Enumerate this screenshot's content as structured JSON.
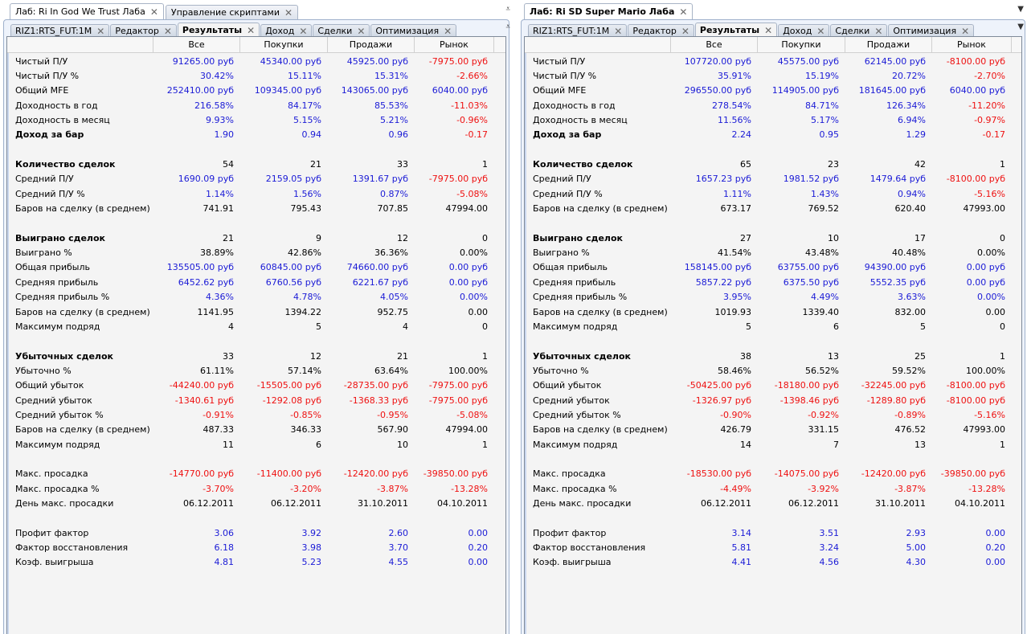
{
  "colors": {
    "positive": "#1b1bd6",
    "negative": "#ee1111",
    "neutral": "#000000"
  },
  "columns": [
    "Все",
    "Покупки",
    "Продажи",
    "Рынок"
  ],
  "left": {
    "outer_tabs": [
      {
        "label": "Лаб: Ri In God We Trust Лаба",
        "active": true
      },
      {
        "label": "Управление скриптами",
        "active": false
      }
    ],
    "inner_tabs": [
      {
        "label": "RIZ1:RTS_FUT:1M"
      },
      {
        "label": "Редактор"
      },
      {
        "label": "Результаты",
        "active": true
      },
      {
        "label": "Доход"
      },
      {
        "label": "Сделки"
      },
      {
        "label": "Оптимизация"
      }
    ],
    "rows": [
      {
        "label": "Чистый П/У",
        "vals": [
          "91265.00 руб",
          "45340.00 руб",
          "45925.00 руб",
          "-7975.00 руб"
        ],
        "col": [
          "blue",
          "blue",
          "blue",
          "red"
        ]
      },
      {
        "label": "Чистый П/У %",
        "vals": [
          "30.42%",
          "15.11%",
          "15.31%",
          "-2.66%"
        ],
        "col": [
          "blue",
          "blue",
          "blue",
          "red"
        ]
      },
      {
        "label": "Общий MFE",
        "vals": [
          "252410.00 руб",
          "109345.00 руб",
          "143065.00 руб",
          "6040.00 руб"
        ],
        "col": [
          "blue",
          "blue",
          "blue",
          "blue"
        ]
      },
      {
        "label": "Доходность в год",
        "vals": [
          "216.58%",
          "84.17%",
          "85.53%",
          "-11.03%"
        ],
        "col": [
          "blue",
          "blue",
          "blue",
          "red"
        ]
      },
      {
        "label": "Доходность в месяц",
        "vals": [
          "9.93%",
          "5.15%",
          "5.21%",
          "-0.96%"
        ],
        "col": [
          "blue",
          "blue",
          "blue",
          "red"
        ]
      },
      {
        "label": "Доход за бар",
        "vals": [
          "1.90",
          "0.94",
          "0.96",
          "-0.17"
        ],
        "col": [
          "blue",
          "blue",
          "blue",
          "red"
        ],
        "bold": true
      },
      {
        "gap": true
      },
      {
        "label": "Количество сделок",
        "vals": [
          "54",
          "21",
          "33",
          "1"
        ],
        "col": [
          "black",
          "black",
          "black",
          "black"
        ],
        "bold": true
      },
      {
        "label": "Средний П/У",
        "vals": [
          "1690.09 руб",
          "2159.05 руб",
          "1391.67 руб",
          "-7975.00 руб"
        ],
        "col": [
          "blue",
          "blue",
          "blue",
          "red"
        ]
      },
      {
        "label": "Средний П/У %",
        "vals": [
          "1.14%",
          "1.56%",
          "0.87%",
          "-5.08%"
        ],
        "col": [
          "blue",
          "blue",
          "blue",
          "red"
        ]
      },
      {
        "label": "Баров на сделку (в среднем)",
        "vals": [
          "741.91",
          "795.43",
          "707.85",
          "47994.00"
        ],
        "col": [
          "black",
          "black",
          "black",
          "black"
        ]
      },
      {
        "gap": true
      },
      {
        "label": "Выиграно сделок",
        "vals": [
          "21",
          "9",
          "12",
          "0"
        ],
        "col": [
          "black",
          "black",
          "black",
          "black"
        ],
        "bold": true
      },
      {
        "label": "Выиграно %",
        "vals": [
          "38.89%",
          "42.86%",
          "36.36%",
          "0.00%"
        ],
        "col": [
          "black",
          "black",
          "black",
          "black"
        ]
      },
      {
        "label": "Общая прибыль",
        "vals": [
          "135505.00 руб",
          "60845.00 руб",
          "74660.00 руб",
          "0.00 руб"
        ],
        "col": [
          "blue",
          "blue",
          "blue",
          "blue"
        ]
      },
      {
        "label": "Средняя прибыль",
        "vals": [
          "6452.62 руб",
          "6760.56 руб",
          "6221.67 руб",
          "0.00 руб"
        ],
        "col": [
          "blue",
          "blue",
          "blue",
          "blue"
        ]
      },
      {
        "label": "Средняя прибыль %",
        "vals": [
          "4.36%",
          "4.78%",
          "4.05%",
          "0.00%"
        ],
        "col": [
          "blue",
          "blue",
          "blue",
          "blue"
        ]
      },
      {
        "label": "Баров на сделку (в среднем)",
        "vals": [
          "1141.95",
          "1394.22",
          "952.75",
          "0.00"
        ],
        "col": [
          "black",
          "black",
          "black",
          "black"
        ]
      },
      {
        "label": "Максимум подряд",
        "vals": [
          "4",
          "5",
          "4",
          "0"
        ],
        "col": [
          "black",
          "black",
          "black",
          "black"
        ]
      },
      {
        "gap": true
      },
      {
        "label": "Убыточных сделок",
        "vals": [
          "33",
          "12",
          "21",
          "1"
        ],
        "col": [
          "black",
          "black",
          "black",
          "black"
        ],
        "bold": true
      },
      {
        "label": "Убыточно %",
        "vals": [
          "61.11%",
          "57.14%",
          "63.64%",
          "100.00%"
        ],
        "col": [
          "black",
          "black",
          "black",
          "black"
        ]
      },
      {
        "label": "Общий убыток",
        "vals": [
          "-44240.00 руб",
          "-15505.00 руб",
          "-28735.00 руб",
          "-7975.00 руб"
        ],
        "col": [
          "red",
          "red",
          "red",
          "red"
        ]
      },
      {
        "label": "Средний убыток",
        "vals": [
          "-1340.61 руб",
          "-1292.08 руб",
          "-1368.33 руб",
          "-7975.00 руб"
        ],
        "col": [
          "red",
          "red",
          "red",
          "red"
        ]
      },
      {
        "label": "Средний убыток %",
        "vals": [
          "-0.91%",
          "-0.85%",
          "-0.95%",
          "-5.08%"
        ],
        "col": [
          "red",
          "red",
          "red",
          "red"
        ]
      },
      {
        "label": "Баров на сделку (в среднем)",
        "vals": [
          "487.33",
          "346.33",
          "567.90",
          "47994.00"
        ],
        "col": [
          "black",
          "black",
          "black",
          "black"
        ]
      },
      {
        "label": "Максимум подряд",
        "vals": [
          "11",
          "6",
          "10",
          "1"
        ],
        "col": [
          "black",
          "black",
          "black",
          "black"
        ]
      },
      {
        "gap": true
      },
      {
        "label": "Макс. просадка",
        "vals": [
          "-14770.00 руб",
          "-11400.00 руб",
          "-12420.00 руб",
          "-39850.00 руб"
        ],
        "col": [
          "red",
          "red",
          "red",
          "red"
        ]
      },
      {
        "label": "Макс. просадка %",
        "vals": [
          "-3.70%",
          "-3.20%",
          "-3.87%",
          "-13.28%"
        ],
        "col": [
          "red",
          "red",
          "red",
          "red"
        ]
      },
      {
        "label": "День макс. просадки",
        "vals": [
          "06.12.2011",
          "06.12.2011",
          "31.10.2011",
          "04.10.2011"
        ],
        "col": [
          "black",
          "black",
          "black",
          "black"
        ]
      },
      {
        "gap": true
      },
      {
        "label": "Профит фактор",
        "vals": [
          "3.06",
          "3.92",
          "2.60",
          "0.00"
        ],
        "col": [
          "blue",
          "blue",
          "blue",
          "blue"
        ]
      },
      {
        "label": "Фактор восстановления",
        "vals": [
          "6.18",
          "3.98",
          "3.70",
          "0.20"
        ],
        "col": [
          "blue",
          "blue",
          "blue",
          "blue"
        ]
      },
      {
        "label": "Коэф. выигрыша",
        "vals": [
          "4.81",
          "5.23",
          "4.55",
          "0.00"
        ],
        "col": [
          "blue",
          "blue",
          "blue",
          "blue"
        ]
      }
    ]
  },
  "right": {
    "outer_tabs": [
      {
        "label": "Лаб: Ri SD Super Mario Лаба",
        "active": true
      }
    ],
    "inner_tabs": [
      {
        "label": "RIZ1:RTS_FUT:1M"
      },
      {
        "label": "Редактор"
      },
      {
        "label": "Результаты",
        "active": true
      },
      {
        "label": "Доход"
      },
      {
        "label": "Сделки"
      },
      {
        "label": "Оптимизация"
      }
    ],
    "rows": [
      {
        "label": "Чистый П/У",
        "vals": [
          "107720.00 руб",
          "45575.00 руб",
          "62145.00 руб",
          "-8100.00 руб"
        ],
        "col": [
          "blue",
          "blue",
          "blue",
          "red"
        ]
      },
      {
        "label": "Чистый П/У %",
        "vals": [
          "35.91%",
          "15.19%",
          "20.72%",
          "-2.70%"
        ],
        "col": [
          "blue",
          "blue",
          "blue",
          "red"
        ]
      },
      {
        "label": "Общий MFE",
        "vals": [
          "296550.00 руб",
          "114905.00 руб",
          "181645.00 руб",
          "6040.00 руб"
        ],
        "col": [
          "blue",
          "blue",
          "blue",
          "blue"
        ]
      },
      {
        "label": "Доходность в год",
        "vals": [
          "278.54%",
          "84.71%",
          "126.34%",
          "-11.20%"
        ],
        "col": [
          "blue",
          "blue",
          "blue",
          "red"
        ]
      },
      {
        "label": "Доходность в месяц",
        "vals": [
          "11.56%",
          "5.17%",
          "6.94%",
          "-0.97%"
        ],
        "col": [
          "blue",
          "blue",
          "blue",
          "red"
        ]
      },
      {
        "label": "Доход за бар",
        "vals": [
          "2.24",
          "0.95",
          "1.29",
          "-0.17"
        ],
        "col": [
          "blue",
          "blue",
          "blue",
          "red"
        ],
        "bold": true
      },
      {
        "gap": true
      },
      {
        "label": "Количество сделок",
        "vals": [
          "65",
          "23",
          "42",
          "1"
        ],
        "col": [
          "black",
          "black",
          "black",
          "black"
        ],
        "bold": true
      },
      {
        "label": "Средний П/У",
        "vals": [
          "1657.23 руб",
          "1981.52 руб",
          "1479.64 руб",
          "-8100.00 руб"
        ],
        "col": [
          "blue",
          "blue",
          "blue",
          "red"
        ]
      },
      {
        "label": "Средний П/У %",
        "vals": [
          "1.11%",
          "1.43%",
          "0.94%",
          "-5.16%"
        ],
        "col": [
          "blue",
          "blue",
          "blue",
          "red"
        ]
      },
      {
        "label": "Баров на сделку (в среднем)",
        "vals": [
          "673.17",
          "769.52",
          "620.40",
          "47993.00"
        ],
        "col": [
          "black",
          "black",
          "black",
          "black"
        ]
      },
      {
        "gap": true
      },
      {
        "label": "Выиграно сделок",
        "vals": [
          "27",
          "10",
          "17",
          "0"
        ],
        "col": [
          "black",
          "black",
          "black",
          "black"
        ],
        "bold": true
      },
      {
        "label": "Выиграно %",
        "vals": [
          "41.54%",
          "43.48%",
          "40.48%",
          "0.00%"
        ],
        "col": [
          "black",
          "black",
          "black",
          "black"
        ]
      },
      {
        "label": "Общая прибыль",
        "vals": [
          "158145.00 руб",
          "63755.00 руб",
          "94390.00 руб",
          "0.00 руб"
        ],
        "col": [
          "blue",
          "blue",
          "blue",
          "blue"
        ]
      },
      {
        "label": "Средняя прибыль",
        "vals": [
          "5857.22 руб",
          "6375.50 руб",
          "5552.35 руб",
          "0.00 руб"
        ],
        "col": [
          "blue",
          "blue",
          "blue",
          "blue"
        ]
      },
      {
        "label": "Средняя прибыль %",
        "vals": [
          "3.95%",
          "4.49%",
          "3.63%",
          "0.00%"
        ],
        "col": [
          "blue",
          "blue",
          "blue",
          "blue"
        ]
      },
      {
        "label": "Баров на сделку (в среднем)",
        "vals": [
          "1019.93",
          "1339.40",
          "832.00",
          "0.00"
        ],
        "col": [
          "black",
          "black",
          "black",
          "black"
        ]
      },
      {
        "label": "Максимум подряд",
        "vals": [
          "5",
          "6",
          "5",
          "0"
        ],
        "col": [
          "black",
          "black",
          "black",
          "black"
        ]
      },
      {
        "gap": true
      },
      {
        "label": "Убыточных сделок",
        "vals": [
          "38",
          "13",
          "25",
          "1"
        ],
        "col": [
          "black",
          "black",
          "black",
          "black"
        ],
        "bold": true
      },
      {
        "label": "Убыточно %",
        "vals": [
          "58.46%",
          "56.52%",
          "59.52%",
          "100.00%"
        ],
        "col": [
          "black",
          "black",
          "black",
          "black"
        ]
      },
      {
        "label": "Общий убыток",
        "vals": [
          "-50425.00 руб",
          "-18180.00 руб",
          "-32245.00 руб",
          "-8100.00 руб"
        ],
        "col": [
          "red",
          "red",
          "red",
          "red"
        ]
      },
      {
        "label": "Средний убыток",
        "vals": [
          "-1326.97 руб",
          "-1398.46 руб",
          "-1289.80 руб",
          "-8100.00 руб"
        ],
        "col": [
          "red",
          "red",
          "red",
          "red"
        ]
      },
      {
        "label": "Средний убыток %",
        "vals": [
          "-0.90%",
          "-0.92%",
          "-0.89%",
          "-5.16%"
        ],
        "col": [
          "red",
          "red",
          "red",
          "red"
        ]
      },
      {
        "label": "Баров на сделку (в среднем)",
        "vals": [
          "426.79",
          "331.15",
          "476.52",
          "47993.00"
        ],
        "col": [
          "black",
          "black",
          "black",
          "black"
        ]
      },
      {
        "label": "Максимум подряд",
        "vals": [
          "14",
          "7",
          "13",
          "1"
        ],
        "col": [
          "black",
          "black",
          "black",
          "black"
        ]
      },
      {
        "gap": true
      },
      {
        "label": "Макс. просадка",
        "vals": [
          "-18530.00 руб",
          "-14075.00 руб",
          "-12420.00 руб",
          "-39850.00 руб"
        ],
        "col": [
          "red",
          "red",
          "red",
          "red"
        ]
      },
      {
        "label": "Макс. просадка %",
        "vals": [
          "-4.49%",
          "-3.92%",
          "-3.87%",
          "-13.28%"
        ],
        "col": [
          "red",
          "red",
          "red",
          "red"
        ]
      },
      {
        "label": "День макс. просадки",
        "vals": [
          "06.12.2011",
          "06.12.2011",
          "31.10.2011",
          "04.10.2011"
        ],
        "col": [
          "black",
          "black",
          "black",
          "black"
        ]
      },
      {
        "gap": true
      },
      {
        "label": "Профит фактор",
        "vals": [
          "3.14",
          "3.51",
          "2.93",
          "0.00"
        ],
        "col": [
          "blue",
          "blue",
          "blue",
          "blue"
        ]
      },
      {
        "label": "Фактор восстановления",
        "vals": [
          "5.81",
          "3.24",
          "5.00",
          "0.20"
        ],
        "col": [
          "blue",
          "blue",
          "blue",
          "blue"
        ]
      },
      {
        "label": "Коэф. выигрыша",
        "vals": [
          "4.41",
          "4.56",
          "4.30",
          "0.00"
        ],
        "col": [
          "blue",
          "blue",
          "blue",
          "blue"
        ]
      }
    ]
  },
  "icons": {
    "close": "close-icon",
    "menu": "tab-menu-icon"
  }
}
